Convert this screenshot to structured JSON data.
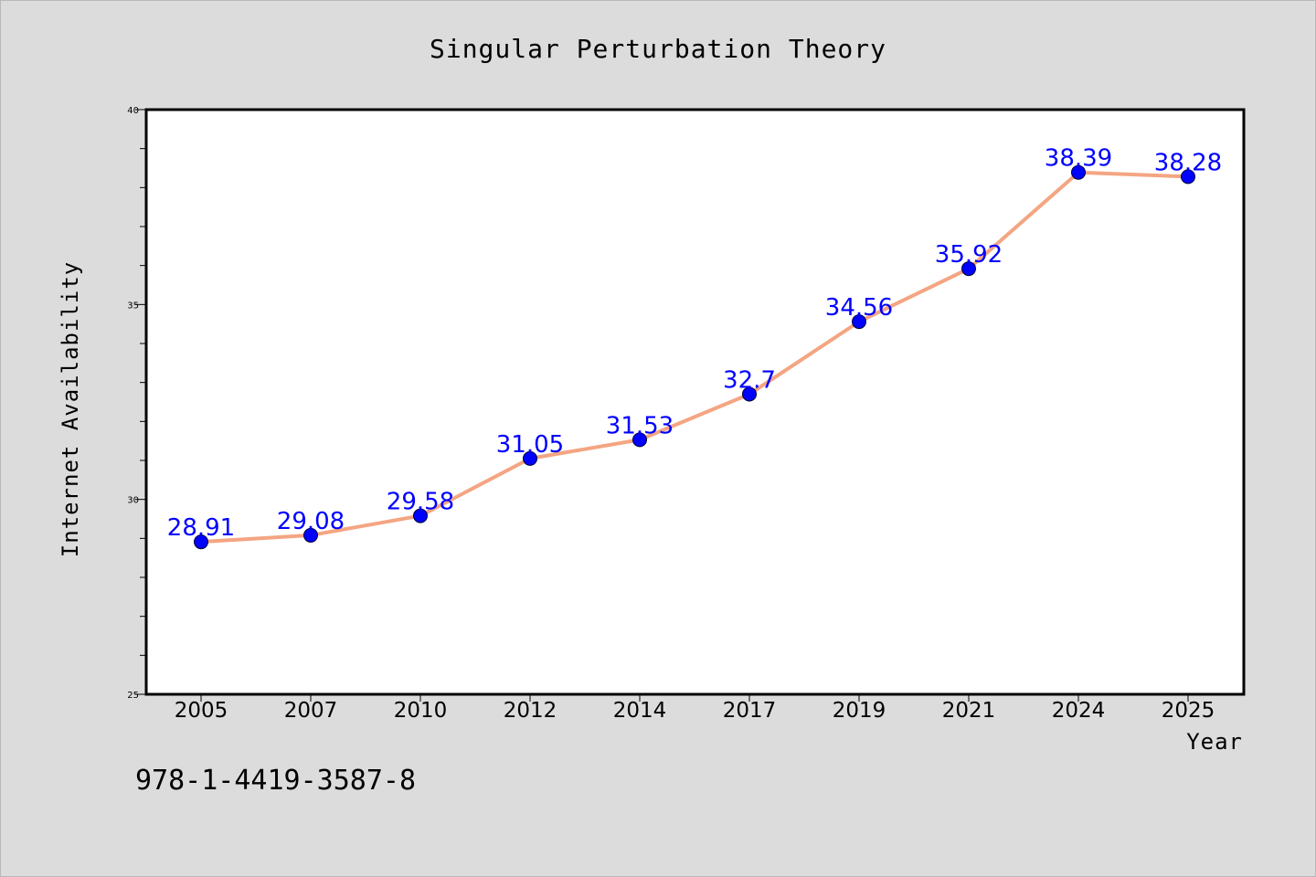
{
  "chart_data": {
    "type": "line",
    "title": "Singular Perturbation Theory",
    "xlabel": "Year",
    "ylabel": "Internet Availability",
    "categories": [
      "2005",
      "2007",
      "2010",
      "2012",
      "2014",
      "2017",
      "2019",
      "2021",
      "2024",
      "2025"
    ],
    "values": [
      28.91,
      29.08,
      29.58,
      31.05,
      31.53,
      32.7,
      34.56,
      35.92,
      38.39,
      38.28
    ],
    "data_labels": [
      "28.91",
      "29.08",
      "29.58",
      "31.05",
      "31.53",
      "32.7",
      "34.56",
      "35.92",
      "38.39",
      "38.28"
    ],
    "ylim": [
      25,
      40
    ],
    "y_ticks": [
      25,
      30,
      35,
      40
    ],
    "grid": false,
    "legend": "none",
    "line_color": "#f4a582",
    "marker_color": "#0000ff",
    "label_color": "#0000ff"
  },
  "footer": {
    "isbn": "978-1-4419-3587-8"
  }
}
